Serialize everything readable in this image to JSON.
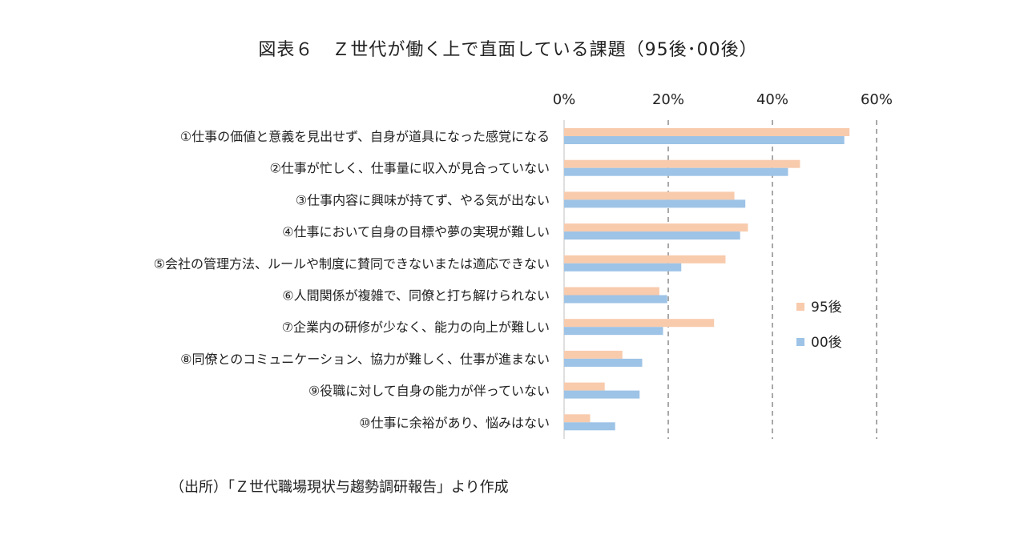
{
  "chart_data": {
    "type": "bar",
    "orientation": "horizontal",
    "title": "図表６　Ｚ世代が働く上で直面している課題（95後･00後）",
    "source": "（出所）「Ｚ世代職場現状与趨勢調研報告」より作成",
    "categories": [
      "①仕事の価値と意義を見出せず、自身が道具になった感覚になる",
      "②仕事が忙しく、仕事量に収入が見合っていない",
      "③仕事内容に興味が持てず、やる気が出ない",
      "④仕事において自身の目標や夢の実現が難しい",
      "⑤会社の管理方法、ルールや制度に賛同できないまたは適応できない",
      "⑥人間関係が複雑で、同僚と打ち解けられない",
      "⑦企業内の研修が少なく、能力の向上が難しい",
      "⑧同僚とのコミュニケーション、協力が難しく、仕事が進まない",
      "⑨役職に対して自身の能力が伴っていない",
      "⑩仕事に余裕があり、悩みはない"
    ],
    "series": [
      {
        "name": "95後",
        "color": "#F8CBAD",
        "values": [
          54.8,
          45.3,
          32.7,
          35.3,
          31.0,
          18.3,
          28.8,
          11.2,
          7.8,
          5.0
        ]
      },
      {
        "name": "00後",
        "color": "#9DC3E6",
        "values": [
          53.8,
          43.0,
          34.8,
          33.8,
          22.5,
          19.8,
          19.0,
          15.0,
          14.5,
          9.8
        ]
      }
    ],
    "x_ticks": [
      "0%",
      "20%",
      "40%",
      "60%"
    ],
    "xlim": [
      0,
      60
    ],
    "x_axis_position": "top",
    "grid": "vertical dashed",
    "legend_position": "right"
  }
}
